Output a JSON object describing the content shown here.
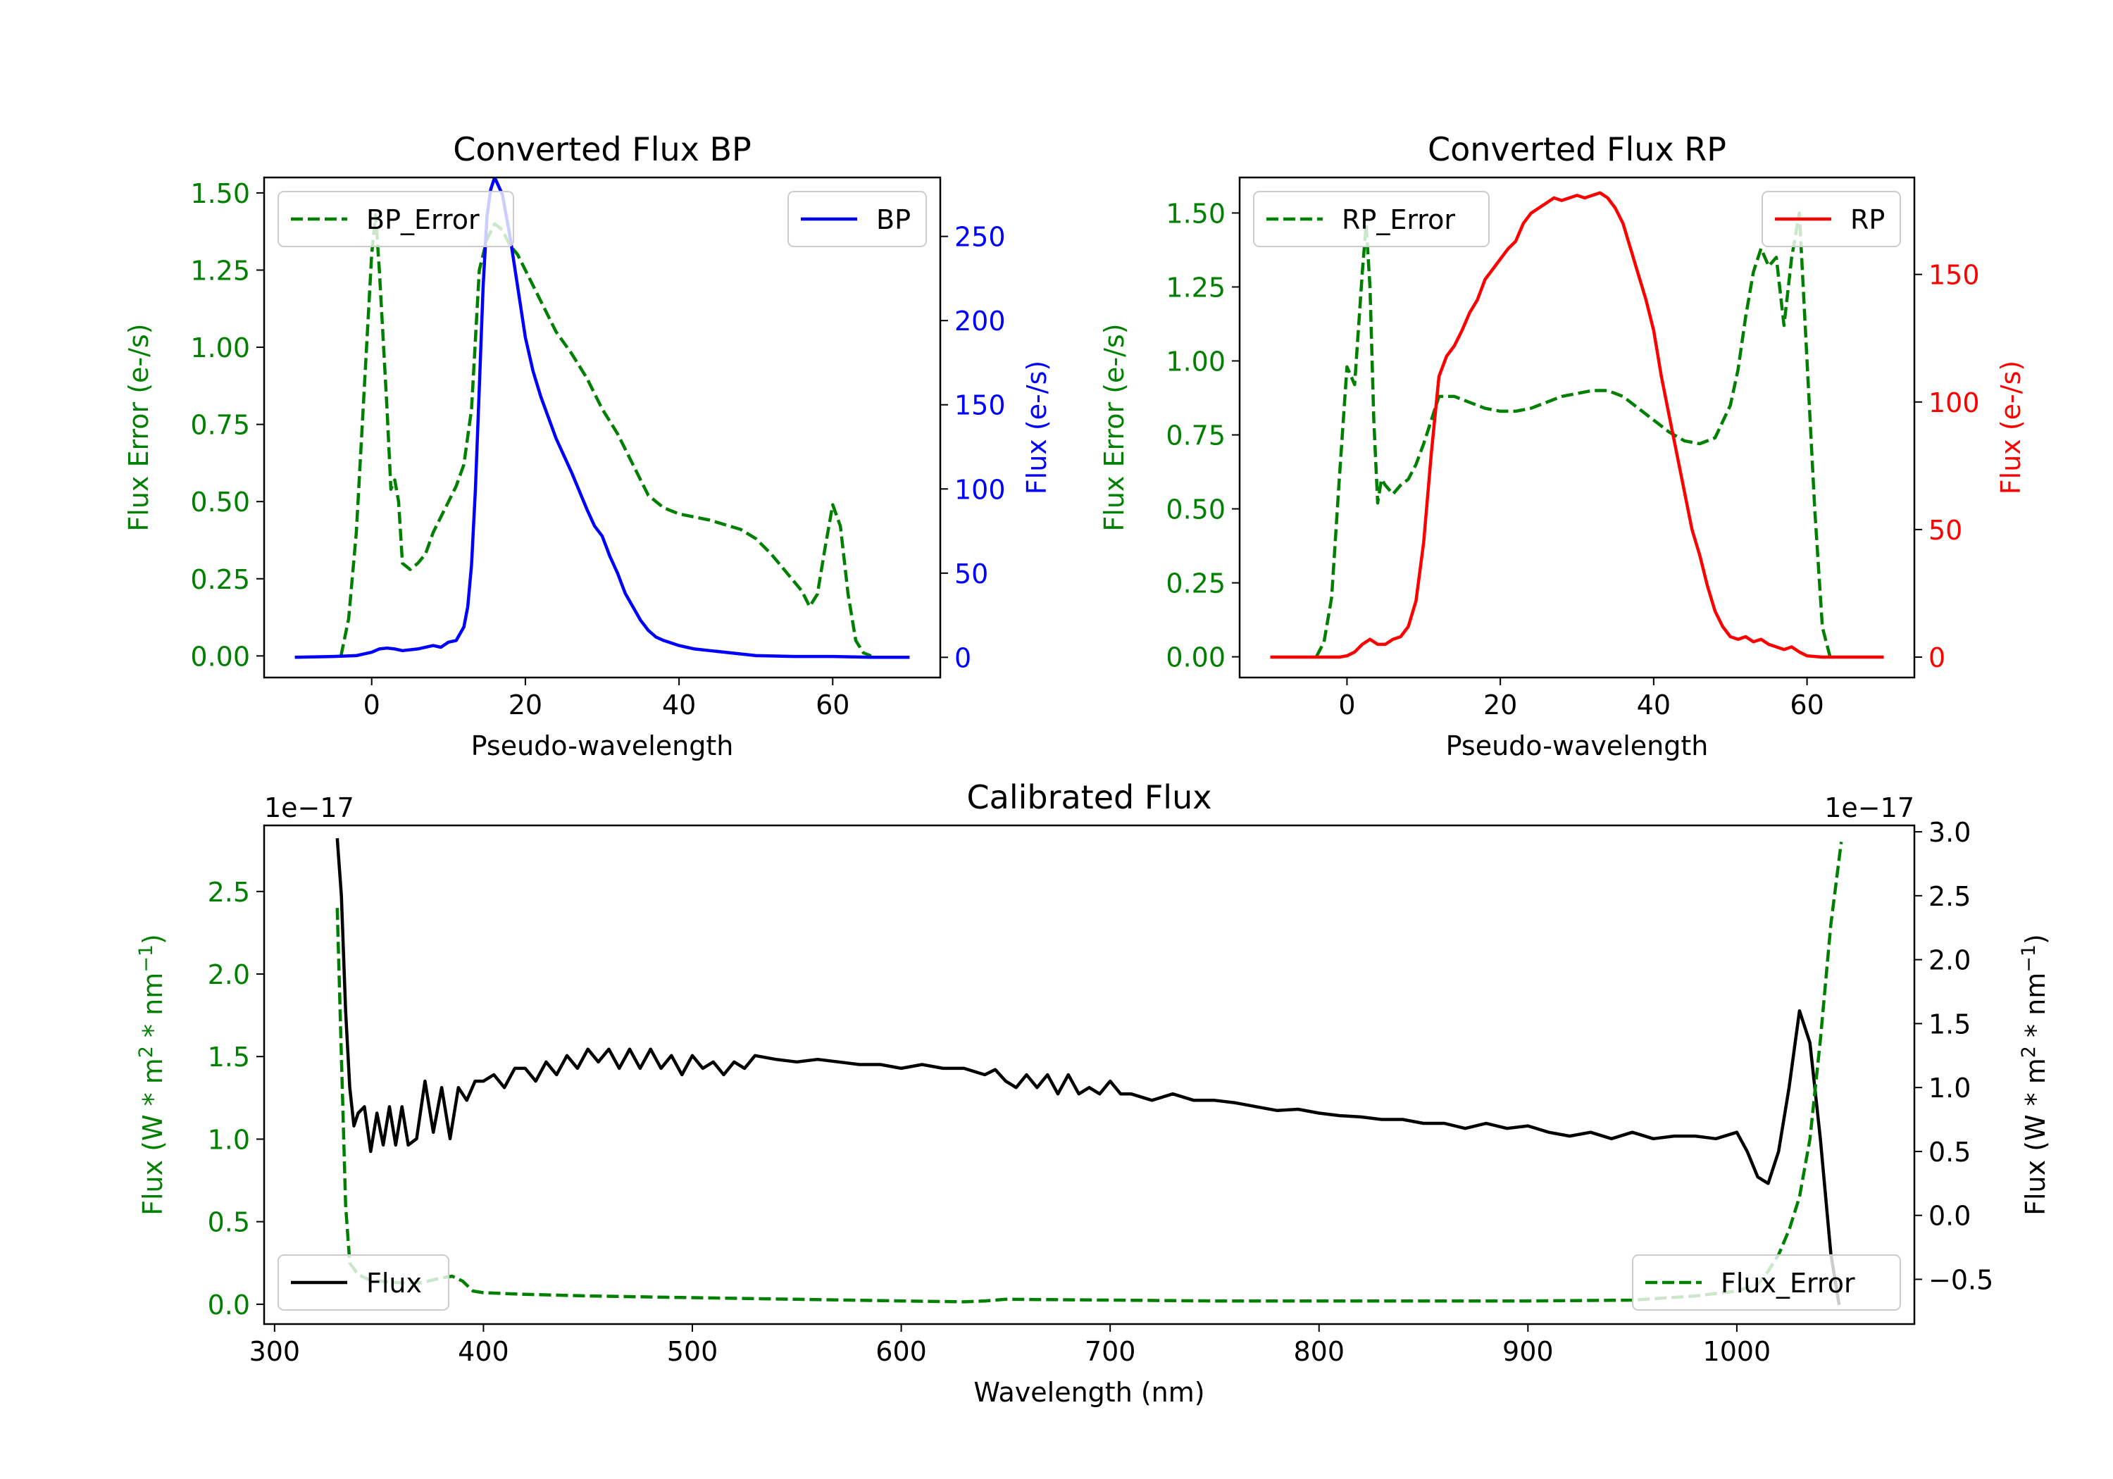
{
  "colors": {
    "green": "#008000",
    "blue": "#0000ff",
    "red": "#ff0000",
    "black": "#000000"
  },
  "chart_data": [
    {
      "id": "bp",
      "type": "line",
      "title": "Converted Flux BP",
      "xlabel": "Pseudo-wavelength",
      "ylabel_left": "Flux Error (e-/s)",
      "ylabel_right": "Flux (e-/s)",
      "xlim": [
        -14,
        74
      ],
      "ylim_left": [
        -0.07,
        1.55
      ],
      "ylim_right": [
        -12,
        285
      ],
      "xticks": [
        0,
        20,
        40,
        60
      ],
      "xtick_labels": [
        "0",
        "20",
        "40",
        "60"
      ],
      "yticks_left": [
        0,
        0.25,
        0.5,
        0.75,
        1.0,
        1.25,
        1.5
      ],
      "yticks_left_labels": [
        "0.00",
        "0.25",
        "0.50",
        "0.75",
        "1.00",
        "1.25",
        "1.50"
      ],
      "yticks_right": [
        0,
        50,
        100,
        150,
        200,
        250
      ],
      "yticks_right_labels": [
        "0",
        "50",
        "100",
        "150",
        "200",
        "250"
      ],
      "series": [
        {
          "name": "BP_Error",
          "axis": "left",
          "style": "dashed",
          "color": "#008000",
          "legend_loc": "upper-left",
          "x": [
            -4,
            -3,
            -2,
            -1,
            0,
            0.5,
            1,
            2,
            2.5,
            3,
            3.5,
            4,
            5,
            6,
            7,
            8,
            9,
            10,
            11,
            12,
            13,
            14,
            15,
            16,
            17,
            18,
            19,
            20,
            22,
            24,
            26,
            28,
            30,
            32,
            34,
            36,
            38,
            40,
            44,
            48,
            50,
            52,
            54,
            56,
            57,
            58,
            59,
            60,
            61,
            62,
            63,
            64,
            65
          ],
          "y": [
            0.0,
            0.12,
            0.4,
            0.85,
            1.3,
            1.43,
            1.25,
            0.8,
            0.54,
            0.57,
            0.5,
            0.3,
            0.28,
            0.3,
            0.33,
            0.4,
            0.45,
            0.5,
            0.55,
            0.62,
            0.8,
            1.25,
            1.35,
            1.4,
            1.38,
            1.33,
            1.3,
            1.25,
            1.15,
            1.05,
            0.98,
            0.9,
            0.8,
            0.72,
            0.62,
            0.52,
            0.48,
            0.46,
            0.44,
            0.41,
            0.38,
            0.33,
            0.27,
            0.21,
            0.16,
            0.2,
            0.35,
            0.49,
            0.42,
            0.2,
            0.05,
            0.01,
            0.0
          ]
        },
        {
          "name": "BP",
          "axis": "right",
          "style": "solid",
          "color": "#0000ff",
          "legend_loc": "upper-right",
          "x": [
            -10,
            -5,
            -2,
            0,
            1,
            2,
            3,
            4,
            6,
            8,
            9,
            10,
            11,
            12,
            12.5,
            13,
            13.5,
            14,
            14.5,
            15,
            15.5,
            16,
            17,
            18,
            19,
            20,
            21,
            22,
            24,
            26,
            28,
            29,
            30,
            31,
            32,
            33,
            34,
            35,
            36,
            37,
            38,
            40,
            42,
            44,
            46,
            48,
            50,
            55,
            60,
            65,
            70
          ],
          "y": [
            0,
            0.5,
            1,
            3,
            5,
            5.5,
            5,
            4,
            5,
            7,
            6,
            9,
            10,
            18,
            30,
            55,
            100,
            160,
            220,
            262,
            278,
            285,
            275,
            250,
            220,
            190,
            170,
            155,
            130,
            110,
            88,
            78,
            72,
            60,
            50,
            38,
            30,
            22,
            16,
            12,
            10,
            7,
            5,
            4,
            3,
            2,
            1,
            0.5,
            0.5,
            0,
            0
          ]
        }
      ]
    },
    {
      "id": "rp",
      "type": "line",
      "title": "Converted Flux RP",
      "xlabel": "Pseudo-wavelength",
      "ylabel_left": "Flux Error (e-/s)",
      "ylabel_right": "Flux (e-/s)",
      "xlim": [
        -14,
        74
      ],
      "ylim_left": [
        -0.07,
        1.62
      ],
      "ylim_right": [
        -8,
        188
      ],
      "xticks": [
        0,
        20,
        40,
        60
      ],
      "xtick_labels": [
        "0",
        "20",
        "40",
        "60"
      ],
      "yticks_left": [
        0,
        0.25,
        0.5,
        0.75,
        1.0,
        1.25,
        1.5
      ],
      "yticks_left_labels": [
        "0.00",
        "0.25",
        "0.50",
        "0.75",
        "1.00",
        "1.25",
        "1.50"
      ],
      "yticks_right": [
        0,
        50,
        100,
        150
      ],
      "yticks_right_labels": [
        "0",
        "50",
        "100",
        "150"
      ],
      "series": [
        {
          "name": "RP_Error",
          "axis": "left",
          "style": "dashed",
          "color": "#008000",
          "legend_loc": "upper-left",
          "x": [
            -4,
            -3,
            -2,
            -1,
            0,
            0.5,
            1,
            2,
            2.5,
            3,
            3.5,
            4,
            4.5,
            5,
            6,
            7,
            8,
            9,
            10,
            11,
            12,
            14,
            16,
            18,
            20,
            22,
            24,
            26,
            28,
            30,
            32,
            34,
            36,
            38,
            40,
            42,
            44,
            46,
            48,
            50,
            51,
            52,
            53,
            54,
            55,
            56,
            57,
            58,
            59,
            60,
            61,
            62,
            63
          ],
          "y": [
            0.0,
            0.05,
            0.2,
            0.6,
            0.98,
            0.95,
            0.92,
            1.3,
            1.46,
            1.25,
            0.8,
            0.52,
            0.6,
            0.58,
            0.55,
            0.58,
            0.6,
            0.65,
            0.72,
            0.8,
            0.88,
            0.88,
            0.86,
            0.84,
            0.83,
            0.83,
            0.84,
            0.86,
            0.88,
            0.89,
            0.9,
            0.9,
            0.88,
            0.84,
            0.8,
            0.76,
            0.73,
            0.72,
            0.74,
            0.85,
            0.97,
            1.15,
            1.3,
            1.38,
            1.32,
            1.35,
            1.12,
            1.35,
            1.5,
            1.0,
            0.5,
            0.1,
            0.0
          ]
        },
        {
          "name": "RP",
          "axis": "right",
          "style": "solid",
          "color": "#ff0000",
          "legend_loc": "upper-right",
          "x": [
            -10,
            -4,
            -1,
            0,
            1,
            2,
            3,
            4,
            5,
            6,
            7,
            8,
            9,
            10,
            11,
            12,
            13,
            14,
            15,
            16,
            17,
            18,
            19,
            20,
            21,
            22,
            23,
            24,
            25,
            26,
            27,
            28,
            29,
            30,
            31,
            32,
            33,
            34,
            35,
            36,
            37,
            38,
            39,
            40,
            41,
            42,
            43,
            44,
            45,
            46,
            47,
            48,
            49,
            50,
            51,
            52,
            53,
            54,
            55,
            56,
            57,
            58,
            59,
            60,
            62,
            65,
            70
          ],
          "y": [
            0,
            0,
            0,
            0.5,
            2,
            5,
            7,
            5,
            5,
            7,
            8,
            12,
            22,
            45,
            80,
            110,
            118,
            122,
            128,
            135,
            140,
            148,
            152,
            156,
            160,
            163,
            170,
            174,
            176,
            178,
            180,
            179,
            180,
            181,
            180,
            181,
            182,
            180,
            176,
            170,
            160,
            150,
            140,
            128,
            110,
            95,
            80,
            65,
            50,
            40,
            28,
            18,
            12,
            8,
            7,
            8,
            6,
            7,
            5,
            4,
            3,
            4,
            2,
            0.5,
            0,
            0,
            0
          ]
        }
      ]
    },
    {
      "id": "calibrated",
      "type": "line",
      "title": "Calibrated Flux",
      "xlabel": "Wavelength (nm)",
      "ylabel_left": "Flux (W * m",
      "ylabel_right": "Flux (W * m",
      "ylabel_sup1": "2",
      "ylabel_mid": " * nm",
      "ylabel_sup2": "−1",
      "ylabel_end": ")",
      "offset_left": "1e−17",
      "offset_right": "1e−17",
      "xlim": [
        295,
        1085
      ],
      "ylim_left": [
        -0.12,
        2.9
      ],
      "ylim_right": [
        -0.85,
        3.05
      ],
      "xticks": [
        300,
        400,
        500,
        600,
        700,
        800,
        900,
        1000
      ],
      "xtick_labels": [
        "300",
        "400",
        "500",
        "600",
        "700",
        "800",
        "900",
        "1000"
      ],
      "yticks_left": [
        0,
        0.5,
        1.0,
        1.5,
        2.0,
        2.5
      ],
      "yticks_left_labels": [
        "0.0",
        "0.5",
        "1.0",
        "1.5",
        "2.0",
        "2.5"
      ],
      "yticks_right": [
        -0.5,
        0,
        0.5,
        1.0,
        1.5,
        2.0,
        2.5,
        3.0
      ],
      "yticks_right_labels": [
        "−0.5",
        "0.0",
        "0.5",
        "1.0",
        "1.5",
        "2.0",
        "2.5",
        "3.0"
      ],
      "series": [
        {
          "name": "Flux",
          "axis": "right",
          "style": "solid",
          "color": "#000000",
          "legend_loc": "lower-left",
          "x": [
            330,
            332,
            334,
            336,
            338,
            340,
            343,
            346,
            349,
            352,
            355,
            358,
            361,
            364,
            368,
            372,
            376,
            380,
            384,
            388,
            392,
            396,
            400,
            405,
            410,
            415,
            420,
            425,
            430,
            435,
            440,
            445,
            450,
            455,
            460,
            465,
            470,
            475,
            480,
            485,
            490,
            495,
            500,
            505,
            510,
            515,
            520,
            525,
            530,
            540,
            550,
            560,
            570,
            580,
            590,
            600,
            610,
            620,
            630,
            640,
            645,
            650,
            655,
            660,
            665,
            670,
            675,
            680,
            685,
            690,
            695,
            700,
            705,
            710,
            720,
            730,
            740,
            750,
            760,
            770,
            780,
            790,
            800,
            810,
            820,
            830,
            840,
            850,
            860,
            870,
            880,
            890,
            900,
            910,
            920,
            930,
            940,
            950,
            960,
            970,
            980,
            990,
            1000,
            1005,
            1010,
            1015,
            1020,
            1025,
            1030,
            1035,
            1040,
            1045,
            1049
          ],
          "y": [
            2.95,
            2.5,
            1.6,
            1.0,
            0.7,
            0.8,
            0.85,
            0.5,
            0.8,
            0.55,
            0.85,
            0.55,
            0.85,
            0.55,
            0.6,
            1.05,
            0.65,
            1.0,
            0.6,
            1.0,
            0.9,
            1.05,
            1.05,
            1.1,
            1.0,
            1.15,
            1.15,
            1.05,
            1.2,
            1.1,
            1.25,
            1.15,
            1.3,
            1.2,
            1.3,
            1.15,
            1.3,
            1.15,
            1.3,
            1.15,
            1.25,
            1.1,
            1.25,
            1.15,
            1.2,
            1.1,
            1.2,
            1.15,
            1.25,
            1.22,
            1.2,
            1.22,
            1.2,
            1.18,
            1.18,
            1.15,
            1.18,
            1.15,
            1.15,
            1.1,
            1.14,
            1.05,
            1.0,
            1.1,
            1.0,
            1.1,
            0.95,
            1.1,
            0.95,
            1.0,
            0.95,
            1.05,
            0.95,
            0.95,
            0.9,
            0.95,
            0.9,
            0.9,
            0.88,
            0.85,
            0.82,
            0.83,
            0.8,
            0.78,
            0.77,
            0.75,
            0.75,
            0.72,
            0.72,
            0.68,
            0.72,
            0.68,
            0.7,
            0.65,
            0.62,
            0.65,
            0.6,
            0.65,
            0.6,
            0.62,
            0.62,
            0.6,
            0.65,
            0.5,
            0.3,
            0.25,
            0.5,
            1.0,
            1.6,
            1.35,
            0.6,
            -0.3,
            -0.7
          ]
        },
        {
          "name": "Flux_Error",
          "axis": "left",
          "style": "dashed",
          "color": "#008000",
          "legend_loc": "lower-right",
          "x": [
            330,
            332,
            334,
            336,
            340,
            345,
            350,
            360,
            370,
            380,
            385,
            390,
            395,
            400,
            420,
            450,
            500,
            550,
            600,
            630,
            640,
            650,
            700,
            750,
            800,
            850,
            900,
            950,
            980,
            1000,
            1010,
            1015,
            1020,
            1025,
            1030,
            1035,
            1040,
            1045,
            1050
          ],
          "y": [
            2.4,
            1.5,
            0.6,
            0.25,
            0.18,
            0.15,
            0.14,
            0.13,
            0.13,
            0.16,
            0.17,
            0.14,
            0.08,
            0.07,
            0.06,
            0.05,
            0.04,
            0.03,
            0.02,
            0.015,
            0.02,
            0.03,
            0.025,
            0.02,
            0.02,
            0.02,
            0.02,
            0.025,
            0.05,
            0.08,
            0.12,
            0.2,
            0.3,
            0.45,
            0.65,
            1.0,
            1.6,
            2.3,
            2.8
          ]
        }
      ]
    }
  ]
}
